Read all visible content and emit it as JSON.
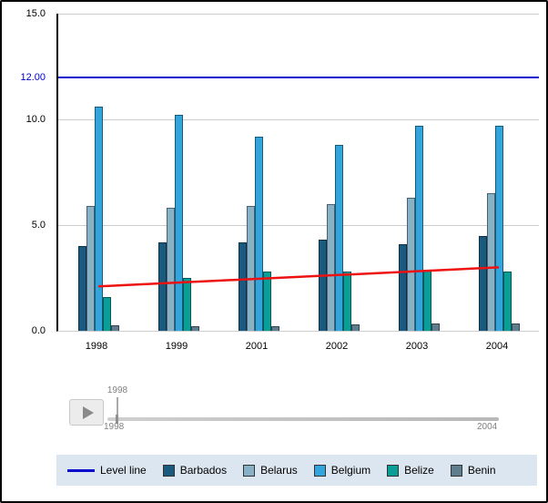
{
  "chart_data": {
    "type": "bar",
    "title": "",
    "categories": [
      "1998",
      "1999",
      "2001",
      "2002",
      "2003",
      "2004"
    ],
    "series": [
      {
        "name": "Barbados",
        "color": "#1a5a7e",
        "values": [
          4.0,
          4.2,
          4.2,
          4.3,
          4.1,
          4.5
        ]
      },
      {
        "name": "Belarus",
        "color": "#87b1c6",
        "values": [
          5.9,
          5.8,
          5.9,
          6.0,
          6.3,
          6.5
        ]
      },
      {
        "name": "Belgium",
        "color": "#31a5dc",
        "values": [
          10.6,
          10.2,
          9.2,
          8.8,
          9.7,
          9.7
        ]
      },
      {
        "name": "Belize",
        "color": "#0a9e98",
        "values": [
          1.6,
          2.5,
          2.8,
          2.8,
          2.9,
          2.8
        ]
      },
      {
        "name": "Benin",
        "color": "#5e7d8d",
        "values": [
          0.25,
          0.2,
          0.2,
          0.3,
          0.35,
          0.35
        ]
      }
    ],
    "ylim": [
      0,
      15
    ],
    "grid": true,
    "gridline_values": [
      5,
      10,
      15
    ],
    "level_line": {
      "label": "Level line",
      "value": 12,
      "display": "12.00",
      "color": "#0a0acd"
    },
    "trend_line": {
      "color": "#ee1111",
      "start_value": 2.1,
      "end_value": 3.0
    },
    "legend_position": "bottom"
  },
  "y_axis": {
    "ticks": [
      {
        "label": "15.0",
        "value": 15
      },
      {
        "label": "12.00",
        "value": 12,
        "color": "#0000cc"
      },
      {
        "label": "10.0",
        "value": 10
      },
      {
        "label": "5.0",
        "value": 5
      },
      {
        "label": "0.0",
        "value": 0
      }
    ]
  },
  "slider": {
    "current_label": "1998",
    "start_label": "1998",
    "end_label": "2004"
  }
}
